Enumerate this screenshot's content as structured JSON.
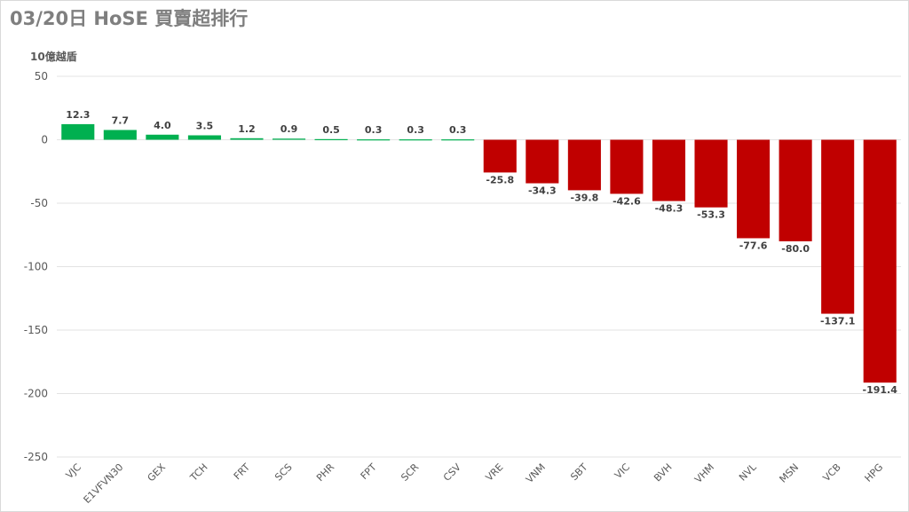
{
  "page": {
    "title": "03/20日 HoSE 買賣超排行"
  },
  "chart_data": {
    "type": "bar",
    "title": "03/20日 HoSE 買賣超排行",
    "ylabel": "10億越盾",
    "xlabel": "",
    "ylim": [
      -250,
      50
    ],
    "yticks": [
      50,
      0,
      -50,
      -100,
      -150,
      -200,
      -250
    ],
    "grid": true,
    "legend": "none",
    "positive_color": "#00b050",
    "negative_color": "#c00000",
    "categories": [
      "VJC",
      "E1VFVN30",
      "GEX",
      "TCH",
      "FRT",
      "SCS",
      "PHR",
      "FPT",
      "SCR",
      "CSV",
      "VRE",
      "VNM",
      "SBT",
      "VIC",
      "BVH",
      "VHM",
      "NVL",
      "MSN",
      "VCB",
      "HPG"
    ],
    "values": [
      12.3,
      7.7,
      4.0,
      3.5,
      1.2,
      0.9,
      0.5,
      0.3,
      0.3,
      0.3,
      -25.8,
      -34.3,
      -39.8,
      -42.6,
      -48.3,
      -53.3,
      -77.6,
      -80.0,
      -137.1,
      -191.4
    ],
    "data_labels": [
      "12.3",
      "7.7",
      "4.0",
      "3.5",
      "1.2",
      "0.9",
      "0.5",
      "0.3",
      "0.3",
      "0.3",
      "-25.8",
      "-34.3",
      "-39.8",
      "-42.6",
      "-48.3",
      "-53.3",
      "-77.6",
      "-80.0",
      "-137.1",
      "-191.4"
    ]
  }
}
